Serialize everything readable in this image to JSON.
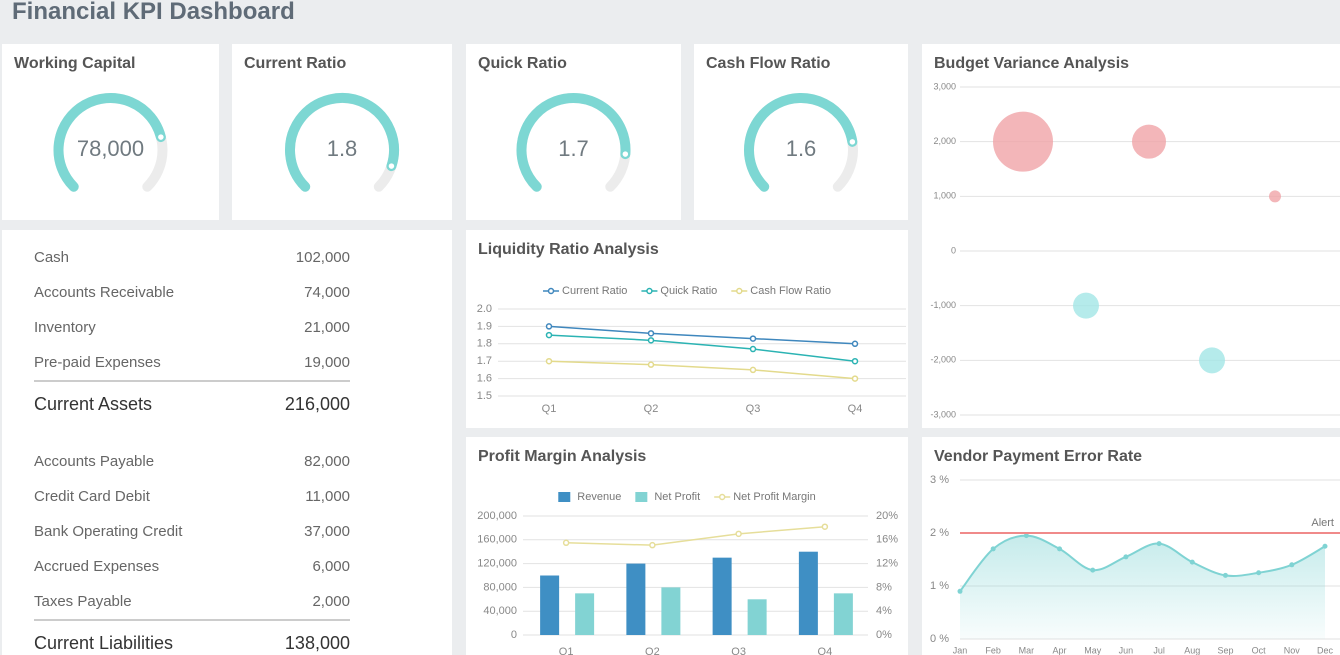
{
  "header": {
    "title": "Financial KPI Dashboard"
  },
  "chart_data": [
    {
      "type": "gauge",
      "title": "Working Capital",
      "value": 78000,
      "value_label": "78,000",
      "range": [
        0,
        100000
      ],
      "color": "#7dd7d3"
    },
    {
      "type": "gauge",
      "title": "Current Ratio",
      "value": 1.8,
      "range": [
        0,
        2
      ],
      "color": "#7dd7d3"
    },
    {
      "type": "gauge",
      "title": "Quick Ratio",
      "value": 1.7,
      "range": [
        0,
        2
      ],
      "color": "#7dd7d3"
    },
    {
      "type": "gauge",
      "title": "Cash Flow Ratio",
      "value": 1.6,
      "range": [
        0,
        2
      ],
      "color": "#7dd7d3"
    },
    {
      "type": "bubble",
      "title": "Budget Variance Analysis",
      "categories": [
        null,
        null,
        null,
        null,
        null
      ],
      "values": [
        2000,
        -1000,
        2000,
        -2000,
        1000
      ],
      "sizes": [
        30,
        13,
        17,
        13,
        6
      ],
      "positive_color": "#f0a4a8",
      "negative_color": "#a3e6e6",
      "ylim": [
        -3000,
        3000
      ],
      "yticks": [
        {
          "value": -3000,
          "label": "-3,000"
        },
        {
          "value": -2000,
          "label": "-2,000"
        },
        {
          "value": -1000,
          "label": "-1,000"
        },
        0,
        {
          "value": 1000,
          "label": "1,000"
        },
        {
          "value": 2000,
          "label": "2,000"
        },
        {
          "value": 3000,
          "label": "3,000"
        }
      ],
      "grid": true
    },
    {
      "type": "line",
      "title": "Liquidity Ratio Analysis",
      "categories": [
        "Q1",
        "Q2",
        "Q3",
        "Q4"
      ],
      "series": [
        {
          "name": "Current Ratio",
          "color": "#3f87bd",
          "values": [
            1.9,
            1.86,
            1.83,
            1.8
          ]
        },
        {
          "name": "Quick Ratio",
          "color": "#2bb3b3",
          "values": [
            1.85,
            1.82,
            1.77,
            1.7
          ]
        },
        {
          "name": "Cash Flow Ratio",
          "color": "#e3da8c",
          "values": [
            1.7,
            1.68,
            1.65,
            1.6
          ]
        }
      ],
      "ylim": [
        1.5,
        2
      ],
      "yticks": [
        1.5,
        1.6,
        1.7,
        1.8,
        1.9,
        {
          "value": 2,
          "label": "2.0"
        }
      ],
      "grid": true
    },
    {
      "type": "bar",
      "title": "Profit Margin Analysis",
      "categories": [
        "Q1",
        "Q2",
        "Q3",
        "Q4"
      ],
      "series": [
        {
          "name": "Revenue",
          "color": "#3f8fc4",
          "values": [
            100000,
            120000,
            130000,
            140000
          ]
        },
        {
          "name": "Net Profit",
          "color": "#82d3d3",
          "values": [
            70000,
            80000,
            60000,
            70000
          ]
        },
        {
          "name": "Net Profit Margin",
          "color": "#e6de9a",
          "type": "line",
          "axis": "y2",
          "values": [
            15.5,
            15.1,
            17,
            18.2
          ]
        }
      ],
      "ylim": [
        0,
        200000
      ],
      "yticks": [
        0,
        {
          "value": 40000,
          "label": "40,000"
        },
        {
          "value": 80000,
          "label": "80,000"
        },
        {
          "value": 120000,
          "label": "120,000"
        },
        {
          "value": 160000,
          "label": "160,000"
        },
        {
          "value": 200000,
          "label": "200,000"
        }
      ],
      "y2lim": [
        0,
        20
      ],
      "y2ticks": [
        {
          "value": 0,
          "label": "0%"
        },
        {
          "value": 4,
          "label": "4%"
        },
        {
          "value": 8,
          "label": "8%"
        },
        {
          "value": 12,
          "label": "12%"
        },
        {
          "value": 16,
          "label": "16%"
        },
        {
          "value": 20,
          "label": "20%"
        }
      ],
      "grid": true
    },
    {
      "type": "area",
      "title": "Vendor Payment Error Rate",
      "categories": [
        "Jan",
        "Feb",
        "Mar",
        "Apr",
        "May",
        "Jun",
        "Jul",
        "Aug",
        "Sep",
        "Oct",
        "Nov",
        "Dec"
      ],
      "series": [
        {
          "name": "Error Rate",
          "color": "#7fd3d3",
          "values": [
            0.9,
            1.7,
            1.95,
            1.7,
            1.3,
            1.55,
            1.8,
            1.45,
            1.2,
            1.25,
            1.4,
            1.75
          ]
        }
      ],
      "alert": {
        "value": 2,
        "label": "Alert",
        "color": "#f08a8a"
      },
      "ylim": [
        0,
        3
      ],
      "yticks": [
        {
          "value": 0,
          "label": "0 %"
        },
        {
          "value": 1,
          "label": "1 %"
        },
        {
          "value": 2,
          "label": "2 %"
        },
        {
          "value": 3,
          "label": "3 %"
        }
      ],
      "grid": true
    }
  ],
  "table": {
    "sections": [
      {
        "rows": [
          [
            "Cash",
            "102,000"
          ],
          [
            "Accounts Receivable",
            "74,000"
          ],
          [
            "Inventory",
            "21,000"
          ],
          [
            "Pre-paid Expenses",
            "19,000"
          ]
        ],
        "total": [
          "Current Assets",
          "216,000"
        ]
      },
      {
        "rows": [
          [
            "Accounts Payable",
            "82,000"
          ],
          [
            "Credit Card Debit",
            "11,000"
          ],
          [
            "Bank Operating Credit",
            "37,000"
          ],
          [
            "Accrued Expenses",
            "6,000"
          ],
          [
            "Taxes Payable",
            "2,000"
          ]
        ],
        "total": [
          "Current Liabilities",
          "138,000"
        ]
      }
    ]
  }
}
